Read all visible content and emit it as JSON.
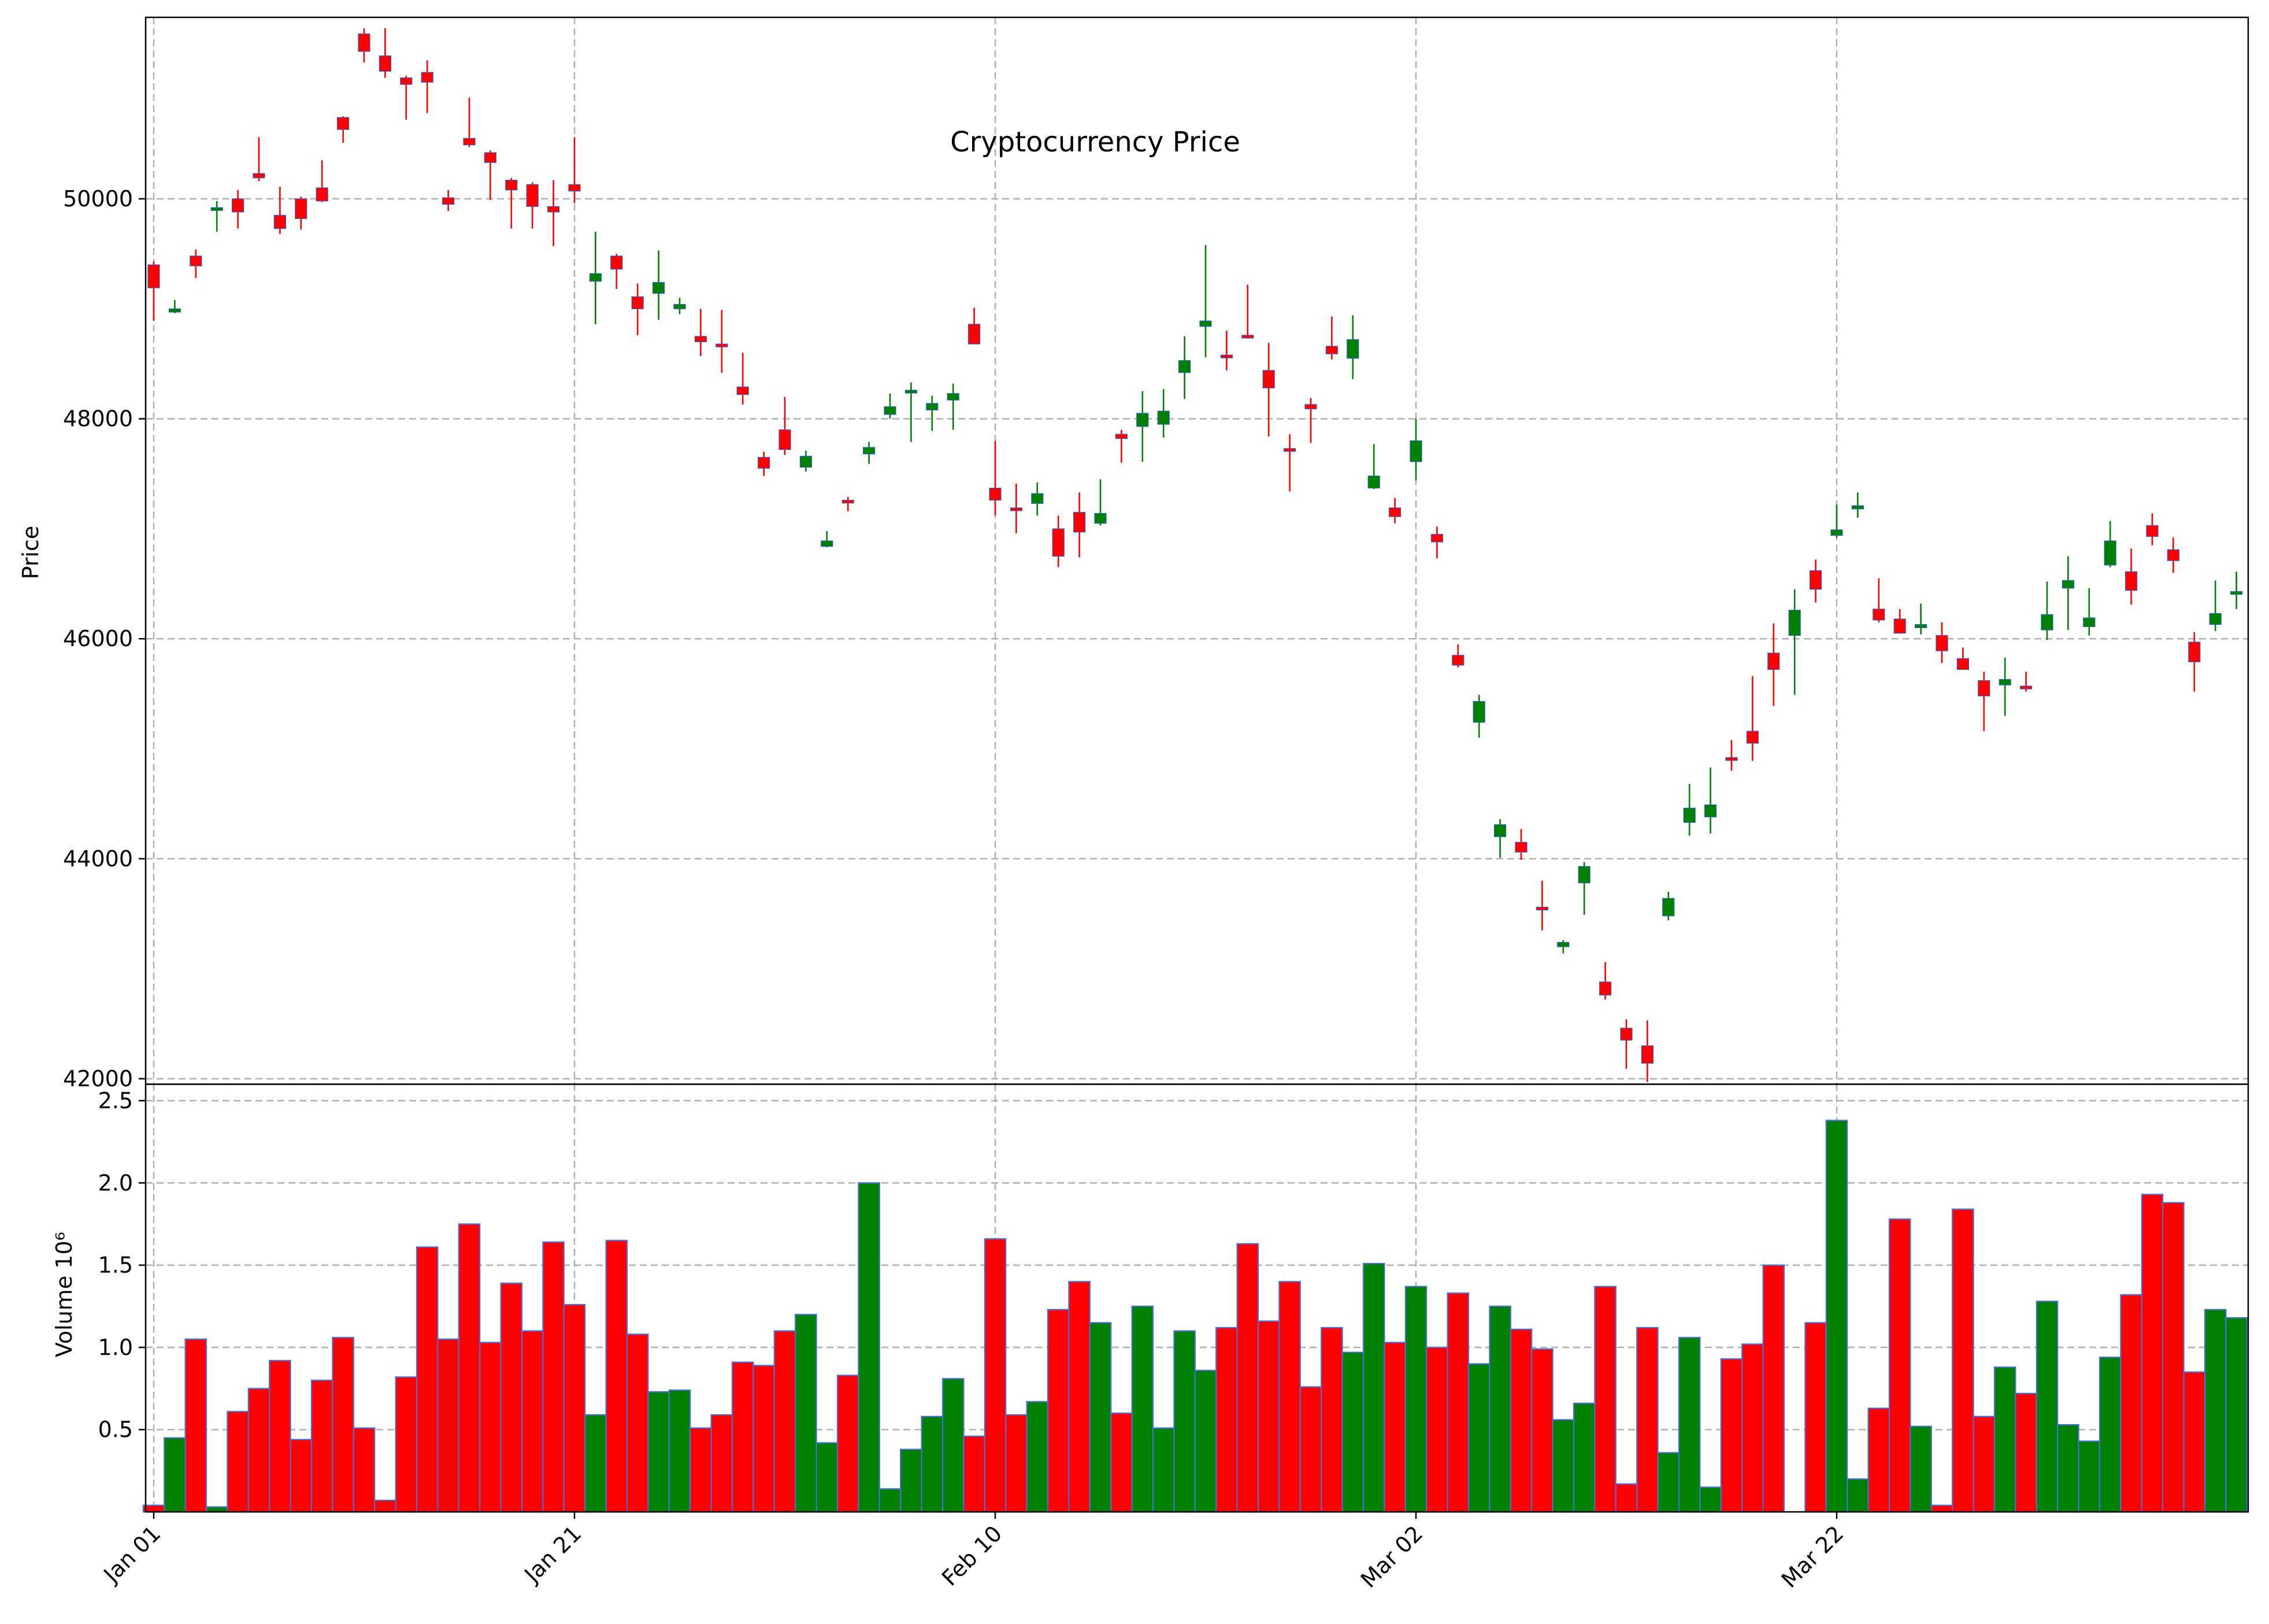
{
  "chart_data": {
    "type": "candlestick",
    "title": "Cryptocurrency Price",
    "xlabel": "",
    "price_ylabel": "Price",
    "volume_ylabel": "Volume  10⁶",
    "price_ylim": [
      41950,
      51650
    ],
    "volume_ylim": [
      0,
      2.6
    ],
    "price_yticks": [
      42000,
      44000,
      46000,
      48000,
      50000
    ],
    "volume_yticks": [
      0.5,
      1.0,
      1.5,
      2.0,
      2.5
    ],
    "xtick_labels": [
      "Jan 01",
      "Jan 21",
      "Feb 10",
      "Mar 02",
      "Mar 22"
    ],
    "xtick_dates": [
      "2023-01-01",
      "2023-01-21",
      "2023-02-10",
      "2023-03-02",
      "2023-03-22"
    ],
    "grid": true,
    "colors": {
      "up": "#008000",
      "down": "#ff0000",
      "edge": "#4a6fd8"
    },
    "dates": [
      "2023-01-01",
      "2023-01-02",
      "2023-01-03",
      "2023-01-04",
      "2023-01-05",
      "2023-01-06",
      "2023-01-07",
      "2023-01-08",
      "2023-01-09",
      "2023-01-10",
      "2023-01-11",
      "2023-01-12",
      "2023-01-13",
      "2023-01-14",
      "2023-01-15",
      "2023-01-16",
      "2023-01-17",
      "2023-01-18",
      "2023-01-19",
      "2023-01-20",
      "2023-01-21",
      "2023-01-22",
      "2023-01-23",
      "2023-01-24",
      "2023-01-25",
      "2023-01-26",
      "2023-01-27",
      "2023-01-28",
      "2023-01-29",
      "2023-01-30",
      "2023-01-31",
      "2023-02-01",
      "2023-02-02",
      "2023-02-03",
      "2023-02-04",
      "2023-02-05",
      "2023-02-06",
      "2023-02-07",
      "2023-02-08",
      "2023-02-09",
      "2023-02-10",
      "2023-02-11",
      "2023-02-12",
      "2023-02-13",
      "2023-02-14",
      "2023-02-15",
      "2023-02-16",
      "2023-02-17",
      "2023-02-18",
      "2023-02-19",
      "2023-02-20",
      "2023-02-21",
      "2023-02-22",
      "2023-02-23",
      "2023-02-24",
      "2023-02-25",
      "2023-02-26",
      "2023-02-27",
      "2023-02-28",
      "2023-03-01",
      "2023-03-02",
      "2023-03-03",
      "2023-03-04",
      "2023-03-05",
      "2023-03-06",
      "2023-03-07",
      "2023-03-08",
      "2023-03-09",
      "2023-03-10",
      "2023-03-11",
      "2023-03-12",
      "2023-03-13",
      "2023-03-14",
      "2023-03-15",
      "2023-03-16",
      "2023-03-17",
      "2023-03-18",
      "2023-03-19",
      "2023-03-20",
      "2023-03-21",
      "2023-03-22",
      "2023-03-23",
      "2023-03-24",
      "2023-03-25",
      "2023-03-26",
      "2023-03-27",
      "2023-03-28",
      "2023-03-29",
      "2023-03-30",
      "2023-03-31",
      "2023-04-01",
      "2023-04-02",
      "2023-04-03",
      "2023-04-04",
      "2023-04-05",
      "2023-04-06",
      "2023-04-07",
      "2023-04-08",
      "2023-04-09",
      "2023-04-10"
    ],
    "open": [
      49400,
      48970,
      49480,
      49900,
      50000,
      50230,
      49850,
      50000,
      50100,
      50740,
      51500,
      51300,
      51100,
      51150,
      50010,
      50550,
      50420,
      50170,
      50130,
      49930,
      50130,
      49250,
      49480,
      49110,
      49140,
      49000,
      48750,
      48680,
      48290,
      47650,
      47900,
      47560,
      46840,
      47260,
      47680,
      48040,
      48260,
      48080,
      48170,
      48860,
      47370,
      47190,
      47230,
      47000,
      47150,
      47050,
      47860,
      47930,
      47950,
      48420,
      48840,
      48580,
      48760,
      48440,
      47730,
      48130,
      48660,
      48550,
      47370,
      47190,
      47610,
      46950,
      45850,
      45240,
      44200,
      44150,
      43560,
      43200,
      43780,
      42880,
      42460,
      42300,
      43480,
      44330,
      44380,
      44920,
      45160,
      45870,
      46030,
      46620,
      46940,
      47180,
      46270,
      46180,
      46100,
      46030,
      45820,
      45620,
      45580,
      45570,
      46080,
      46460,
      46110,
      46670,
      46610,
      47030,
      46810,
      45970,
      46130,
      46420
    ],
    "high": [
      49430,
      49080,
      49540,
      49980,
      50080,
      50560,
      50110,
      50020,
      50350,
      50750,
      51550,
      51550,
      51120,
      51260,
      50080,
      50920,
      50440,
      50190,
      50150,
      50170,
      50560,
      49700,
      49500,
      49230,
      49530,
      49100,
      49000,
      48990,
      48600,
      47700,
      48200,
      47710,
      46980,
      47290,
      47790,
      48230,
      48330,
      48210,
      48320,
      49010,
      47800,
      47410,
      47420,
      47120,
      47330,
      47450,
      47900,
      48250,
      48270,
      48750,
      49580,
      48800,
      49220,
      48690,
      47860,
      48190,
      48930,
      48940,
      47770,
      47280,
      48000,
      47020,
      45950,
      45490,
      44360,
      44270,
      43800,
      43260,
      43970,
      43060,
      42540,
      42530,
      43700,
      44680,
      44830,
      45080,
      45660,
      46140,
      46450,
      46720,
      47220,
      47330,
      46550,
      46270,
      46320,
      46150,
      45920,
      45700,
      45830,
      45700,
      46520,
      46750,
      46460,
      47070,
      46820,
      47140,
      46920,
      46060,
      46530,
      46610
    ],
    "low": [
      48890,
      48960,
      49280,
      49700,
      49730,
      50160,
      49680,
      49720,
      49970,
      50510,
      51240,
      51100,
      50720,
      50780,
      49890,
      50470,
      49990,
      49730,
      49730,
      49570,
      49960,
      48860,
      49180,
      48760,
      48900,
      48950,
      48570,
      48420,
      48130,
      47480,
      47670,
      47520,
      46830,
      47160,
      47590,
      48000,
      47790,
      47890,
      47900,
      48680,
      47120,
      46960,
      47120,
      46650,
      46740,
      47030,
      47600,
      47610,
      47830,
      48180,
      48560,
      48440,
      48730,
      47840,
      47340,
      47780,
      48540,
      48360,
      47360,
      47050,
      47440,
      46730,
      45740,
      45100,
      44010,
      43990,
      43350,
      43140,
      43490,
      42720,
      42090,
      41970,
      43440,
      44210,
      44230,
      44800,
      44890,
      45390,
      45490,
      46330,
      46920,
      47100,
      46150,
      46050,
      46040,
      45780,
      45740,
      45160,
      45300,
      45520,
      45990,
      46080,
      46030,
      46650,
      46310,
      46850,
      46600,
      45520,
      46070,
      46270
    ],
    "close": [
      49190,
      49000,
      49390,
      49920,
      49880,
      50190,
      49730,
      49820,
      49980,
      50630,
      51340,
      51160,
      51040,
      51060,
      49950,
      50490,
      50330,
      50080,
      49930,
      49880,
      50070,
      49320,
      49360,
      49000,
      49240,
      49040,
      48700,
      48660,
      48220,
      47550,
      47720,
      47660,
      46890,
      47250,
      47740,
      48110,
      48260,
      48140,
      48230,
      48680,
      47260,
      47180,
      47320,
      46750,
      46970,
      47140,
      47820,
      48050,
      48070,
      48530,
      48890,
      48560,
      48740,
      48280,
      47720,
      48090,
      48590,
      48720,
      47480,
      47110,
      47800,
      46880,
      45760,
      45430,
      44310,
      44060,
      43550,
      43240,
      43930,
      42760,
      42350,
      42140,
      43640,
      44460,
      44490,
      44900,
      45050,
      45720,
      46260,
      46450,
      46990,
      47210,
      46170,
      46050,
      46130,
      45890,
      45720,
      45480,
      45630,
      45560,
      46220,
      46530,
      46190,
      46890,
      46440,
      46930,
      46710,
      45790,
      46230,
      46430
    ],
    "volume": [
      0.04,
      0.45,
      1.05,
      0.03,
      0.61,
      0.75,
      0.92,
      0.44,
      0.8,
      1.06,
      0.51,
      0.07,
      0.82,
      1.61,
      1.05,
      1.75,
      1.03,
      1.39,
      1.1,
      1.64,
      1.26,
      0.59,
      1.65,
      1.08,
      0.73,
      0.74,
      0.51,
      0.59,
      0.91,
      0.89,
      1.1,
      1.2,
      0.42,
      0.83,
      2.0,
      0.14,
      0.38,
      0.58,
      0.81,
      0.46,
      1.66,
      0.59,
      0.67,
      1.23,
      1.4,
      1.15,
      0.6,
      1.25,
      0.51,
      1.1,
      0.86,
      1.12,
      1.63,
      1.16,
      1.4,
      0.76,
      1.12,
      0.97,
      1.51,
      1.03,
      1.37,
      1.0,
      1.33,
      0.9,
      1.25,
      1.11,
      0.99,
      0.56,
      0.66,
      1.37,
      0.17,
      1.12,
      0.36,
      1.06,
      0.15,
      0.93,
      1.02,
      1.5,
      0.0,
      1.15,
      2.38,
      0.2,
      0.63,
      1.78,
      0.52,
      0.04,
      1.84,
      0.58,
      0.88,
      0.72,
      1.28,
      0.53,
      0.43,
      0.94,
      1.32,
      1.93,
      1.88,
      0.85,
      1.23,
      1.18
    ]
  }
}
